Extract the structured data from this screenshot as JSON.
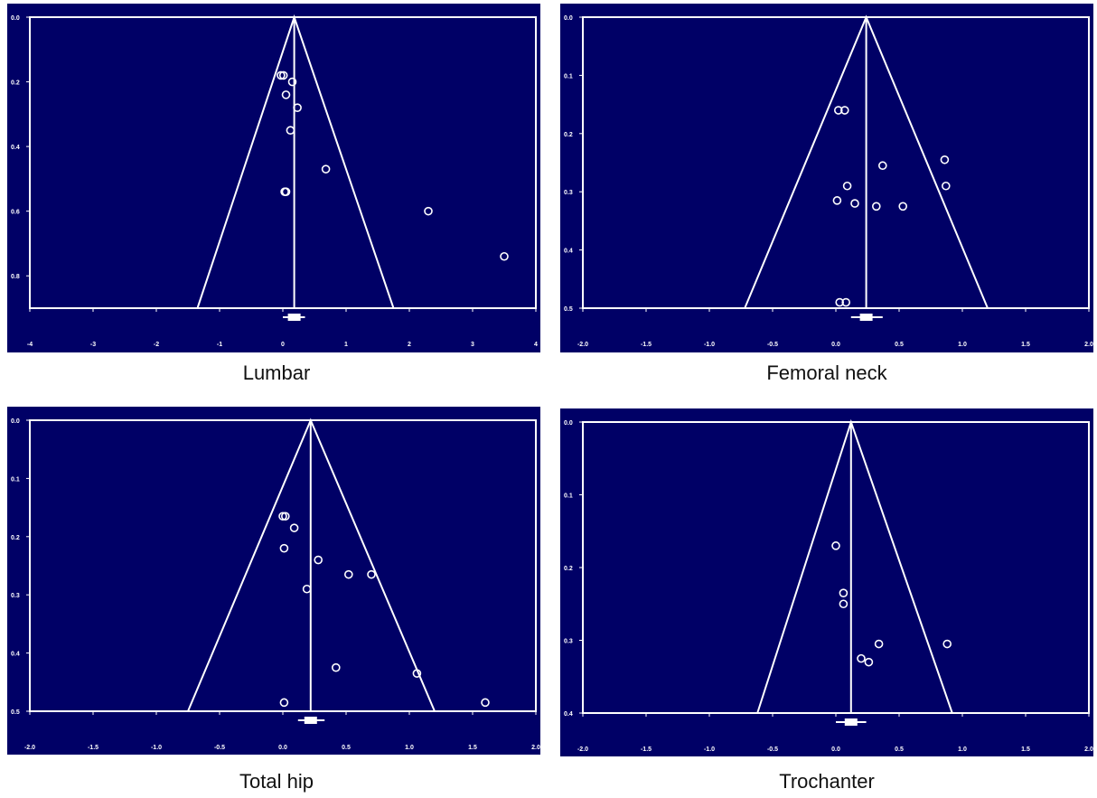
{
  "colors": {
    "background": "#000066",
    "foreground": "#ffffff"
  },
  "chart_data": [
    {
      "type": "scatter",
      "subtype": "funnel-plot",
      "caption": "Lumbar",
      "xlim": [
        -4,
        4
      ],
      "ylim": [
        0,
        0.9
      ],
      "y_inverted": true,
      "xticks": [
        -4,
        -3,
        -2,
        -1,
        0,
        1,
        2,
        3,
        4
      ],
      "xtick_labels": [
        "-4",
        "-3",
        "-2",
        "-1",
        "0",
        "1",
        "2",
        "3",
        "4"
      ],
      "yticks": [
        0,
        0.2,
        0.4,
        0.6,
        0.8
      ],
      "ytick_labels": [
        "0.0",
        "0.2",
        "0.4",
        "0.6",
        "0.8"
      ],
      "funnel": {
        "pooled": 0.18,
        "left_base": -1.35,
        "right_base": 1.75
      },
      "summary_marker": {
        "x": 0.18,
        "ci": [
          0.0,
          0.35
        ]
      },
      "points": [
        {
          "x": -0.03,
          "y": 0.18
        },
        {
          "x": 0.01,
          "y": 0.18
        },
        {
          "x": 0.15,
          "y": 0.2
        },
        {
          "x": 0.05,
          "y": 0.24
        },
        {
          "x": 0.23,
          "y": 0.28
        },
        {
          "x": 0.12,
          "y": 0.35
        },
        {
          "x": 0.68,
          "y": 0.47
        },
        {
          "x": 0.03,
          "y": 0.54
        },
        {
          "x": 0.05,
          "y": 0.54
        },
        {
          "x": 2.3,
          "y": 0.6
        },
        {
          "x": 3.5,
          "y": 0.74
        }
      ]
    },
    {
      "type": "scatter",
      "subtype": "funnel-plot",
      "caption": "Femoral neck",
      "xlim": [
        -2.0,
        2.0
      ],
      "ylim": [
        0,
        0.5
      ],
      "y_inverted": true,
      "xticks": [
        -2.0,
        -1.5,
        -1.0,
        -0.5,
        0.0,
        0.5,
        1.0,
        1.5,
        2.0
      ],
      "xtick_labels": [
        "-2.0",
        "-1.5",
        "-1.0",
        "-0.5",
        "0.0",
        "0.5",
        "1.0",
        "1.5",
        "2.0"
      ],
      "yticks": [
        0,
        0.1,
        0.2,
        0.3,
        0.4,
        0.5
      ],
      "ytick_labels": [
        "0.0",
        "0.1",
        "0.2",
        "0.3",
        "0.4",
        "0.5"
      ],
      "funnel": {
        "pooled": 0.24,
        "left_base": -0.72,
        "right_base": 1.2
      },
      "summary_marker": {
        "x": 0.24,
        "ci": [
          0.12,
          0.37
        ]
      },
      "points": [
        {
          "x": 0.02,
          "y": 0.16
        },
        {
          "x": 0.07,
          "y": 0.16
        },
        {
          "x": 0.37,
          "y": 0.255
        },
        {
          "x": 0.86,
          "y": 0.245
        },
        {
          "x": 0.09,
          "y": 0.29
        },
        {
          "x": 0.87,
          "y": 0.29
        },
        {
          "x": 0.01,
          "y": 0.315
        },
        {
          "x": 0.15,
          "y": 0.32
        },
        {
          "x": 0.32,
          "y": 0.325
        },
        {
          "x": 0.53,
          "y": 0.325
        },
        {
          "x": 0.03,
          "y": 0.49
        },
        {
          "x": 0.08,
          "y": 0.49
        }
      ]
    },
    {
      "type": "scatter",
      "subtype": "funnel-plot",
      "caption": "Total hip",
      "xlim": [
        -2.0,
        2.0
      ],
      "ylim": [
        0,
        0.5
      ],
      "y_inverted": true,
      "xticks": [
        -2.0,
        -1.5,
        -1.0,
        -0.5,
        0.0,
        0.5,
        1.0,
        1.5,
        2.0
      ],
      "xtick_labels": [
        "-2.0",
        "-1.5",
        "-1.0",
        "-0.5",
        "0.0",
        "0.5",
        "1.0",
        "1.5",
        "2.0"
      ],
      "yticks": [
        0,
        0.1,
        0.2,
        0.3,
        0.4,
        0.5
      ],
      "ytick_labels": [
        "0.0",
        "0.1",
        "0.2",
        "0.3",
        "0.4",
        "0.5"
      ],
      "funnel": {
        "pooled": 0.22,
        "left_base": -0.75,
        "right_base": 1.2
      },
      "summary_marker": {
        "x": 0.22,
        "ci": [
          0.12,
          0.33
        ]
      },
      "points": [
        {
          "x": 0.0,
          "y": 0.165
        },
        {
          "x": 0.02,
          "y": 0.165
        },
        {
          "x": 0.09,
          "y": 0.185
        },
        {
          "x": 0.01,
          "y": 0.22
        },
        {
          "x": 0.28,
          "y": 0.24
        },
        {
          "x": 0.52,
          "y": 0.265
        },
        {
          "x": 0.7,
          "y": 0.265
        },
        {
          "x": 0.19,
          "y": 0.29
        },
        {
          "x": 0.42,
          "y": 0.425
        },
        {
          "x": 1.06,
          "y": 0.435
        },
        {
          "x": 0.01,
          "y": 0.485
        },
        {
          "x": 1.6,
          "y": 0.485
        }
      ]
    },
    {
      "type": "scatter",
      "subtype": "funnel-plot",
      "caption": "Trochanter",
      "xlim": [
        -2.0,
        2.0
      ],
      "ylim": [
        0,
        0.4
      ],
      "y_inverted": true,
      "xticks": [
        -2.0,
        -1.5,
        -1.0,
        -0.5,
        0.0,
        0.5,
        1.0,
        1.5,
        2.0
      ],
      "xtick_labels": [
        "-2.0",
        "-1.5",
        "-1.0",
        "-0.5",
        "0.0",
        "0.5",
        "1.0",
        "1.5",
        "2.0"
      ],
      "yticks": [
        0,
        0.1,
        0.2,
        0.3,
        0.4
      ],
      "ytick_labels": [
        "0.0",
        "0.1",
        "0.2",
        "0.3",
        "0.4"
      ],
      "funnel": {
        "pooled": 0.12,
        "left_base": -0.62,
        "right_base": 0.92
      },
      "summary_marker": {
        "x": 0.12,
        "ci": [
          0.0,
          0.24
        ]
      },
      "points": [
        {
          "x": 0.0,
          "y": 0.17
        },
        {
          "x": 0.06,
          "y": 0.235
        },
        {
          "x": 0.06,
          "y": 0.25
        },
        {
          "x": 0.34,
          "y": 0.305
        },
        {
          "x": 0.88,
          "y": 0.305
        },
        {
          "x": 0.2,
          "y": 0.325
        },
        {
          "x": 0.26,
          "y": 0.33
        }
      ]
    }
  ]
}
